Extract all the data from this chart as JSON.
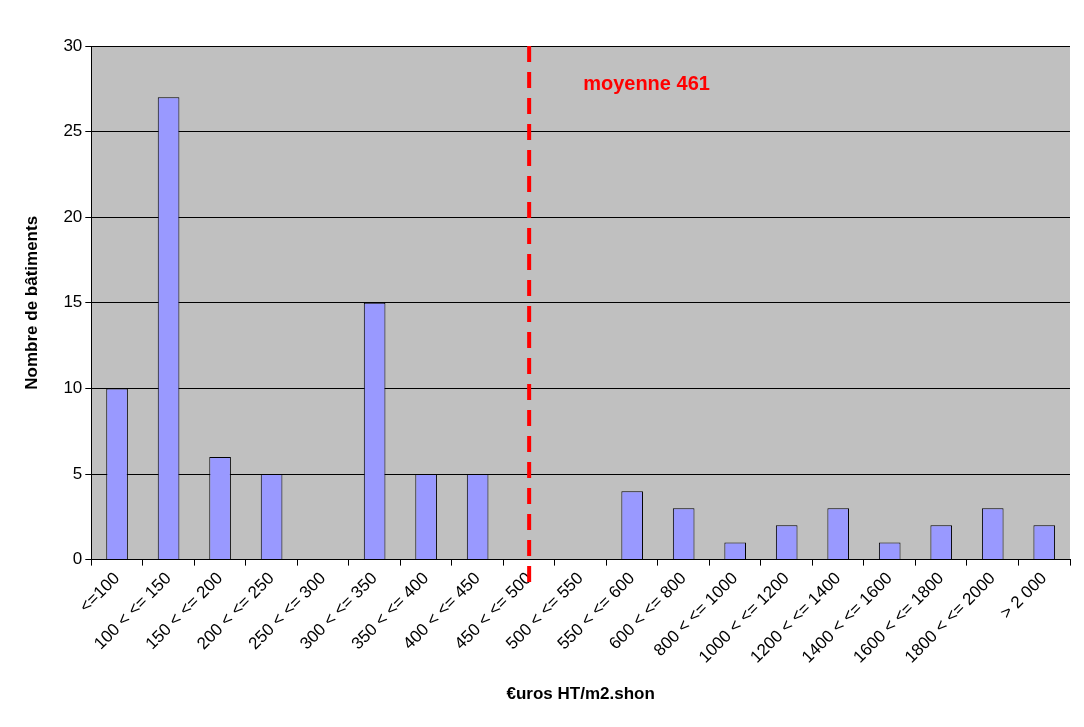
{
  "chart_data": {
    "type": "bar",
    "xlabel": "€uros HT/m2.shon",
    "ylabel": "Nombre de bâtiments",
    "categories": [
      "<=100",
      "100 < <= 150",
      "150 < <= 200",
      "200 < <= 250",
      "250 < <= 300",
      "300 < <= 350",
      "350 < <= 400",
      "400 < <= 450",
      "450 < <= 500",
      "500 < <= 550",
      "550 < <= 600",
      "600 < <= 800",
      "800 < <= 1000",
      "1000 < <= 1200",
      "1200 < <= 1400",
      "1400 < <= 1600",
      "1600 < <= 1800",
      "1800 < <= 2000",
      "> 2 000"
    ],
    "values": [
      10,
      27,
      6,
      5,
      0,
      15,
      5,
      5,
      0,
      0,
      4,
      3,
      1,
      2,
      3,
      1,
      2,
      3,
      2
    ],
    "color": "#9999ff",
    "ylim": [
      0,
      30
    ],
    "yticks": [
      0,
      5,
      10,
      15,
      20,
      25,
      30
    ],
    "grid": "y",
    "legend": false,
    "ref_lines": [
      {
        "axis": "x",
        "value": "450 < <= 500",
        "label": "moyenne 461",
        "color": "#ff0000",
        "line_style": "dashed"
      }
    ]
  }
}
